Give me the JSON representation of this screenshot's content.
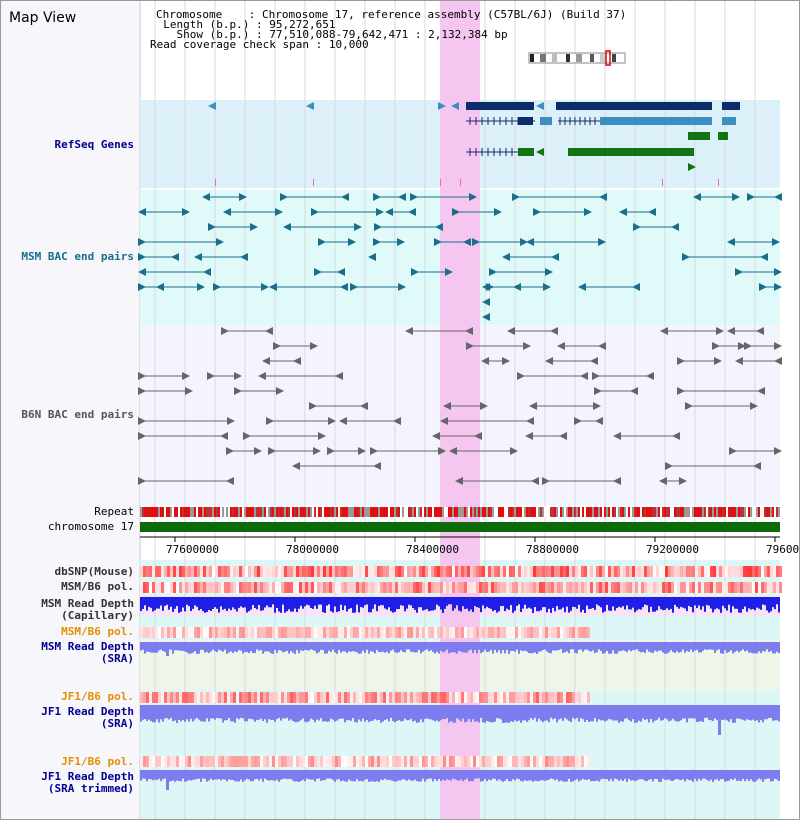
{
  "header": {
    "title": "Map View",
    "chromosome_key": "Chromosome",
    "chromosome_value": "Chromosome 17, reference assembly (C57BL/6J) (Build 37)",
    "length_key": "Length (b.p.)",
    "length_value": "95,272,651",
    "show_key": "Show (b.p.)",
    "show_value": "77,510,088-79,642,471 : 2,132,384 bp",
    "coverage_key": "Read coverage check span",
    "coverage_value": "10,000"
  },
  "tracks": {
    "refseq": "RefSeq Genes",
    "msm_bac": "MSM BAC end pairs",
    "b6n_bac": "B6N BAC end pairs",
    "repeat": "Repeat",
    "chromosome": "chromosome 17",
    "dbsnp": "dbSNP(Mouse)",
    "msm_b6_pol": "MSM/B6 pol.",
    "msm_read_depth_cap": "MSM Read Depth",
    "msm_read_depth_cap_sub": "(Capillary)",
    "msm_b6_pol2": "MSM/B6 pol.",
    "msm_read_depth_sra": "MSM Read Depth",
    "msm_read_depth_sra_sub": "(SRA)",
    "jf1_b6_pol": "JF1/B6 pol.",
    "jf1_read_depth_sra": "JF1 Read Depth",
    "jf1_read_depth_sra_sub": "(SRA)",
    "jf1_b6_pol2": "JF1/B6 pol.",
    "jf1_read_depth_trim": "JF1 Read Depth",
    "jf1_read_depth_trim_sub": "(SRA trimmed)"
  },
  "axis_ticks": [
    "77600000",
    "78000000",
    "78400000",
    "78800000",
    "79200000",
    "79600"
  ],
  "colors": {
    "refseq_bg": "#dcf0fa",
    "bac_bg": "#e0fafa",
    "b6n_bg": "#f4f4ff",
    "highlight": "#f8d8f4",
    "gene_dark": "#0b2e6b",
    "gene_light": "#3d8fc3",
    "gene_green": "#137313",
    "msm_bac": "#1a6e8c",
    "b6n_bac": "#666666",
    "chrom": "#0b6b0b",
    "depth_blue": "#1e1ee6",
    "depth_sra": "#7d7df0",
    "label_navy": "#000090",
    "label_teal": "#1a6e8c",
    "label_orange": "#e29000",
    "label_gray": "#333333"
  }
}
